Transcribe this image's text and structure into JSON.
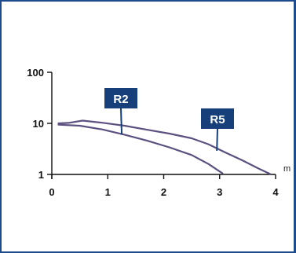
{
  "chart_data": {
    "type": "line",
    "y_scale": "log",
    "xlim": [
      0,
      4
    ],
    "ylim": [
      1,
      100
    ],
    "x_ticks": [
      "0",
      "1",
      "2",
      "3",
      "4"
    ],
    "y_ticks": [
      "100",
      "10",
      "1"
    ],
    "x_unit": "m",
    "grid": false,
    "series": [
      {
        "name": "R2",
        "color": "#5c5080",
        "points": [
          [
            0.12,
            9.4
          ],
          [
            0.5,
            9.0
          ],
          [
            0.9,
            7.6
          ],
          [
            1.3,
            6.0
          ],
          [
            1.7,
            4.6
          ],
          [
            2.1,
            3.4
          ],
          [
            2.5,
            2.4
          ],
          [
            2.8,
            1.6
          ],
          [
            3.05,
            1.05
          ]
        ],
        "label_anchor": [
          1.25,
          6.0
        ]
      },
      {
        "name": "R5",
        "color": "#5c5080",
        "points": [
          [
            0.12,
            10.0
          ],
          [
            0.3,
            10.2
          ],
          [
            0.55,
            11.3
          ],
          [
            0.9,
            10.3
          ],
          [
            1.3,
            9.0
          ],
          [
            1.7,
            7.5
          ],
          [
            2.1,
            6.3
          ],
          [
            2.5,
            5.1
          ],
          [
            2.8,
            3.9
          ],
          [
            3.1,
            2.7
          ],
          [
            3.4,
            1.9
          ],
          [
            3.7,
            1.3
          ],
          [
            3.9,
            1.02
          ]
        ],
        "label_anchor": [
          2.95,
          2.9
        ]
      }
    ]
  },
  "colors": {
    "frame": "#1e4b8c",
    "axis": "#111111",
    "callout_bg": "#17407a"
  }
}
